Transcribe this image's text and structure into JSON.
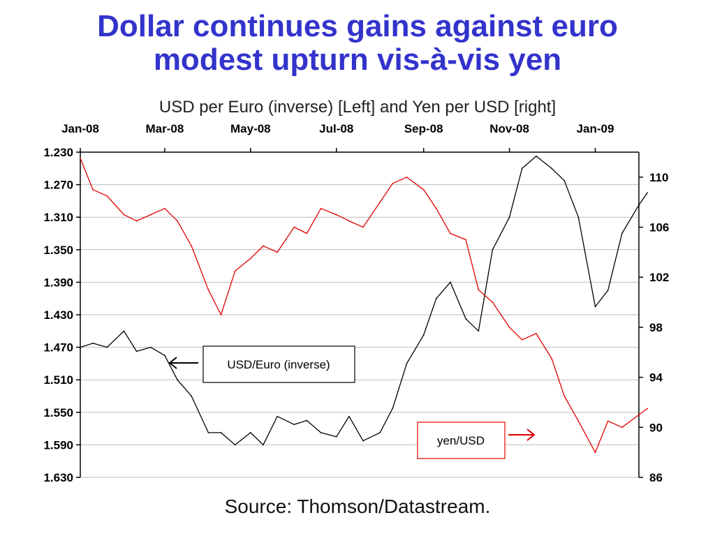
{
  "chart_data": {
    "type": "line",
    "title_line1": "Dollar continues gains against euro",
    "title_line2": "modest upturn vis-à-vis yen",
    "subtitle": "USD per Euro (inverse) [Left] and Yen per USD [right]",
    "source": "Source: Thomson/Datastream.",
    "x_ticks": [
      "Jan-08",
      "Mar-08",
      "May-08",
      "Jul-08",
      "Sep-08",
      "Nov-08",
      "Jan-09"
    ],
    "x_range": [
      "2008-01",
      "2009-02"
    ],
    "left_axis": {
      "label": "",
      "inverted": true,
      "range": [
        1.23,
        1.63
      ],
      "ticks": [
        "1.230",
        "1.270",
        "1.310",
        "1.350",
        "1.390",
        "1.430",
        "1.470",
        "1.510",
        "1.550",
        "1.590",
        "1.630"
      ]
    },
    "right_axis": {
      "label": "",
      "range": [
        86,
        112
      ],
      "ticks": [
        "110",
        "106",
        "102",
        "98",
        "94",
        "90",
        "86"
      ]
    },
    "grid": "horizontal",
    "series": [
      {
        "name": "USD/Euro (inverse)",
        "color": "#000000",
        "axis": "left",
        "x": [
          "2008-01-01",
          "2008-01-10",
          "2008-01-20",
          "2008-02-01",
          "2008-02-10",
          "2008-02-20",
          "2008-03-01",
          "2008-03-10",
          "2008-03-20",
          "2008-04-01",
          "2008-04-10",
          "2008-04-20",
          "2008-05-01",
          "2008-05-10",
          "2008-05-20",
          "2008-06-01",
          "2008-06-10",
          "2008-06-20",
          "2008-07-01",
          "2008-07-10",
          "2008-07-20",
          "2008-08-01",
          "2008-08-10",
          "2008-08-20",
          "2008-09-01",
          "2008-09-10",
          "2008-09-20",
          "2008-10-01",
          "2008-10-10",
          "2008-10-20",
          "2008-11-01",
          "2008-11-10",
          "2008-11-20",
          "2008-12-01",
          "2008-12-10",
          "2008-12-20",
          "2009-01-01",
          "2009-01-10",
          "2009-01-20",
          "2009-02-01",
          "2009-02-07"
        ],
        "values": [
          1.47,
          1.465,
          1.47,
          1.45,
          1.475,
          1.47,
          1.48,
          1.51,
          1.53,
          1.575,
          1.575,
          1.59,
          1.575,
          1.59,
          1.555,
          1.565,
          1.56,
          1.575,
          1.58,
          1.555,
          1.585,
          1.575,
          1.545,
          1.49,
          1.455,
          1.41,
          1.39,
          1.435,
          1.45,
          1.35,
          1.31,
          1.25,
          1.235,
          1.25,
          1.265,
          1.31,
          1.42,
          1.4,
          1.33,
          1.295,
          1.28
        ]
      },
      {
        "name": "yen/USD",
        "color": "#e00000",
        "axis": "right",
        "x": [
          "2008-01-01",
          "2008-01-10",
          "2008-01-20",
          "2008-02-01",
          "2008-02-10",
          "2008-02-20",
          "2008-03-01",
          "2008-03-10",
          "2008-03-20",
          "2008-04-01",
          "2008-04-10",
          "2008-04-20",
          "2008-05-01",
          "2008-05-10",
          "2008-05-20",
          "2008-06-01",
          "2008-06-10",
          "2008-06-20",
          "2008-07-01",
          "2008-07-10",
          "2008-07-20",
          "2008-08-01",
          "2008-08-10",
          "2008-08-20",
          "2008-09-01",
          "2008-09-10",
          "2008-09-20",
          "2008-10-01",
          "2008-10-10",
          "2008-10-20",
          "2008-11-01",
          "2008-11-10",
          "2008-11-20",
          "2008-12-01",
          "2008-12-10",
          "2008-12-20",
          "2009-01-01",
          "2009-01-10",
          "2009-01-20",
          "2009-02-01",
          "2009-02-07"
        ],
        "values": [
          111.5,
          109.0,
          108.5,
          107.0,
          106.5,
          107.0,
          107.5,
          106.5,
          104.5,
          101.0,
          99.0,
          102.5,
          103.5,
          104.5,
          104.0,
          106.0,
          105.5,
          107.5,
          107.0,
          106.5,
          106.0,
          108.0,
          109.5,
          110.0,
          109.0,
          107.5,
          105.5,
          105.0,
          101.0,
          100.0,
          98.0,
          97.0,
          97.5,
          95.5,
          92.5,
          90.5,
          88.0,
          90.5,
          90.0,
          91.0,
          91.5
        ]
      }
    ],
    "annotations": [
      {
        "text": "USD/Euro (inverse)",
        "arrow": "left"
      },
      {
        "text": "yen/USD",
        "arrow": "right"
      }
    ],
    "colors": {
      "title": "#3333cc",
      "euro_series": "#000000",
      "yen_series": "#e00000",
      "grid": "#bbbbbb",
      "yen_box": "#e00000"
    }
  }
}
